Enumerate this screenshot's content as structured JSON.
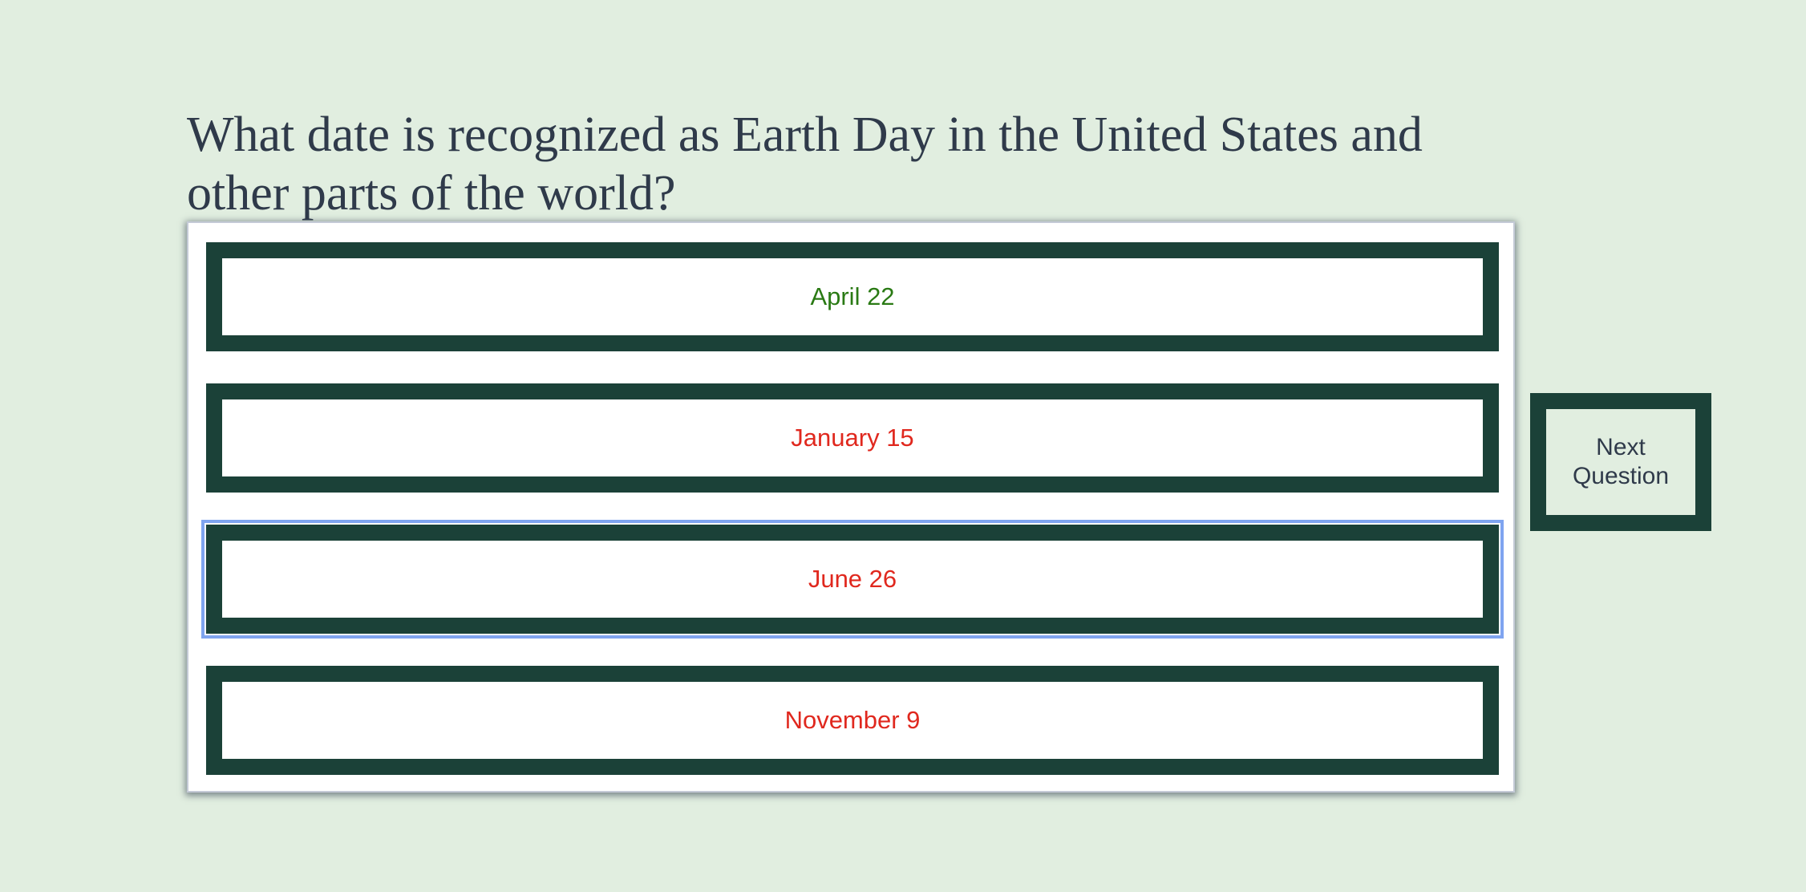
{
  "quiz": {
    "question": "What date is recognized as Earth Day in the United States and other parts of the world?",
    "answers": [
      {
        "label": "April 22",
        "status": "correct",
        "color": "#2a7a14"
      },
      {
        "label": "January 15",
        "status": "wrong",
        "color": "#e0281e"
      },
      {
        "label": "June 26",
        "status": "wrong",
        "color": "#e0281e",
        "focused": true
      },
      {
        "label": "November 9",
        "status": "wrong",
        "color": "#e0281e"
      }
    ],
    "next_label": "Next Question"
  },
  "theme": {
    "background": "#e1eee0",
    "frame": "#1b4138",
    "text": "#2f3a4a",
    "focus_ring": "#7fa4f0"
  }
}
